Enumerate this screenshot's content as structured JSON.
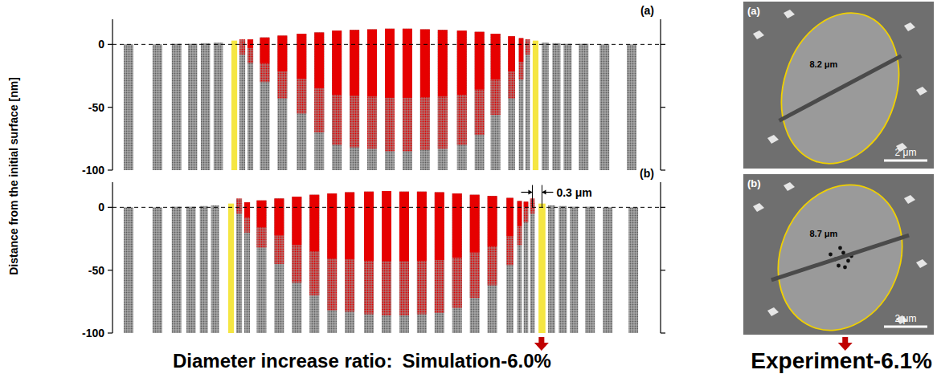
{
  "y_axis_title": "Distance from the initial surface [nm]",
  "chart_data": [
    {
      "type": "column",
      "title": "(a)",
      "xlim": [
        -8.6,
        8.5
      ],
      "ylim": [
        -100,
        20
      ],
      "yticks": [
        -100,
        -50,
        0
      ],
      "reference_line": 0,
      "x": [
        -8.1,
        -7.2,
        -6.6,
        -6.1,
        -5.7,
        -5.3,
        -4.8,
        -4.55,
        -4.3,
        -3.85,
        -3.3,
        -2.7,
        -2.15,
        -1.6,
        -1.05,
        -0.5,
        0.05,
        0.6,
        1.15,
        1.7,
        2.3,
        2.85,
        3.35,
        3.85,
        4.15,
        4.35,
        4.6,
        4.9,
        5.25,
        5.6,
        6.1,
        6.75,
        7.6
      ],
      "top": [
        0,
        0,
        0.5,
        0.5,
        1,
        1.5,
        3,
        3.5,
        4,
        5.5,
        7,
        8.5,
        9.5,
        11,
        11.5,
        12,
        12.5,
        12.5,
        12,
        11.5,
        11,
        10,
        8.5,
        6.5,
        5,
        4,
        3,
        1.5,
        1,
        0.5,
        0.5,
        0,
        0
      ],
      "melt": [
        null,
        null,
        null,
        null,
        null,
        null,
        null,
        -8,
        -15,
        -30,
        -43,
        -55,
        -70,
        -80,
        -82,
        -83,
        -85,
        -85,
        -84,
        -83,
        -80,
        -72,
        -56,
        -43,
        -28,
        -8,
        null,
        null,
        null,
        null,
        null,
        null,
        null
      ],
      "colors": [
        "#8c8c8c",
        "#8c8c8c",
        "#8c8c8c",
        "#8c8c8c",
        "#8c8c8c",
        "#8c8c8c",
        "#f5e642",
        "#e60000",
        "#e60000",
        "#e60000",
        "#e60000",
        "#e60000",
        "#e60000",
        "#e60000",
        "#e60000",
        "#e60000",
        "#e60000",
        "#e60000",
        "#e60000",
        "#e60000",
        "#e60000",
        "#e60000",
        "#e60000",
        "#e60000",
        "#e60000",
        "#e60000",
        "#f5e642",
        "#8c8c8c",
        "#8c8c8c",
        "#8c8c8c",
        "#8c8c8c",
        "#8c8c8c",
        "#8c8c8c"
      ]
    },
    {
      "type": "column",
      "title": "(b)",
      "xlim": [
        -8.6,
        8.5
      ],
      "ylim": [
        -100,
        20
      ],
      "yticks": [
        -100,
        -50,
        0
      ],
      "reference_line": 0,
      "x": [
        -8.1,
        -7.2,
        -6.6,
        -6.15,
        -5.75,
        -5.4,
        -4.9,
        -4.65,
        -4.4,
        -3.95,
        -3.4,
        -2.85,
        -2.3,
        -1.75,
        -1.2,
        -0.6,
        -0.05,
        0.5,
        1.05,
        1.6,
        2.15,
        2.7,
        3.25,
        3.8,
        4.1,
        4.3,
        4.5,
        4.8,
        5.1,
        5.45,
        5.8,
        6.3,
        6.85,
        7.65
      ],
      "top": [
        0,
        0,
        0.5,
        0.5,
        1,
        1.5,
        3,
        3.5,
        4,
        5.5,
        7,
        8.5,
        10,
        11,
        12,
        12.5,
        13,
        12.5,
        12.5,
        12,
        11,
        10,
        9,
        7.5,
        5,
        4.5,
        4,
        3,
        1.5,
        1,
        0.5,
        0.5,
        0,
        0
      ],
      "melt": [
        null,
        null,
        null,
        null,
        null,
        null,
        null,
        -5,
        -20,
        -32,
        -45,
        -60,
        -70,
        -82,
        -83,
        -85,
        -86,
        -86,
        -85,
        -84,
        -80,
        -72,
        -62,
        -46,
        -30,
        -12,
        -5,
        null,
        null,
        null,
        null,
        null,
        null,
        null
      ],
      "colors": [
        "#8c8c8c",
        "#8c8c8c",
        "#8c8c8c",
        "#8c8c8c",
        "#8c8c8c",
        "#8c8c8c",
        "#f5e642",
        "#e60000",
        "#e60000",
        "#e60000",
        "#e60000",
        "#e60000",
        "#e60000",
        "#e60000",
        "#e60000",
        "#e60000",
        "#e60000",
        "#e60000",
        "#e60000",
        "#e60000",
        "#e60000",
        "#e60000",
        "#e60000",
        "#e60000",
        "#e60000",
        "#e60000",
        "#e60000",
        "#f5e642",
        "#8c8c8c",
        "#8c8c8c",
        "#8c8c8c",
        "#8c8c8c",
        "#8c8c8c",
        "#8c8c8c"
      ],
      "annotation": {
        "text": "0.3 μm",
        "x": [
          4.5,
          4.8
        ],
        "y": 12
      }
    }
  ],
  "images": [
    {
      "label": "(a)",
      "measure": "8.2 μm",
      "scale": "2 μm"
    },
    {
      "label": "(b)",
      "measure": "8.7 μm",
      "scale": "2 μm"
    }
  ],
  "footer": {
    "label": "Diameter increase ratio:",
    "simulation": "Simulation-6.0%",
    "experiment": "Experiment-6.1%"
  }
}
